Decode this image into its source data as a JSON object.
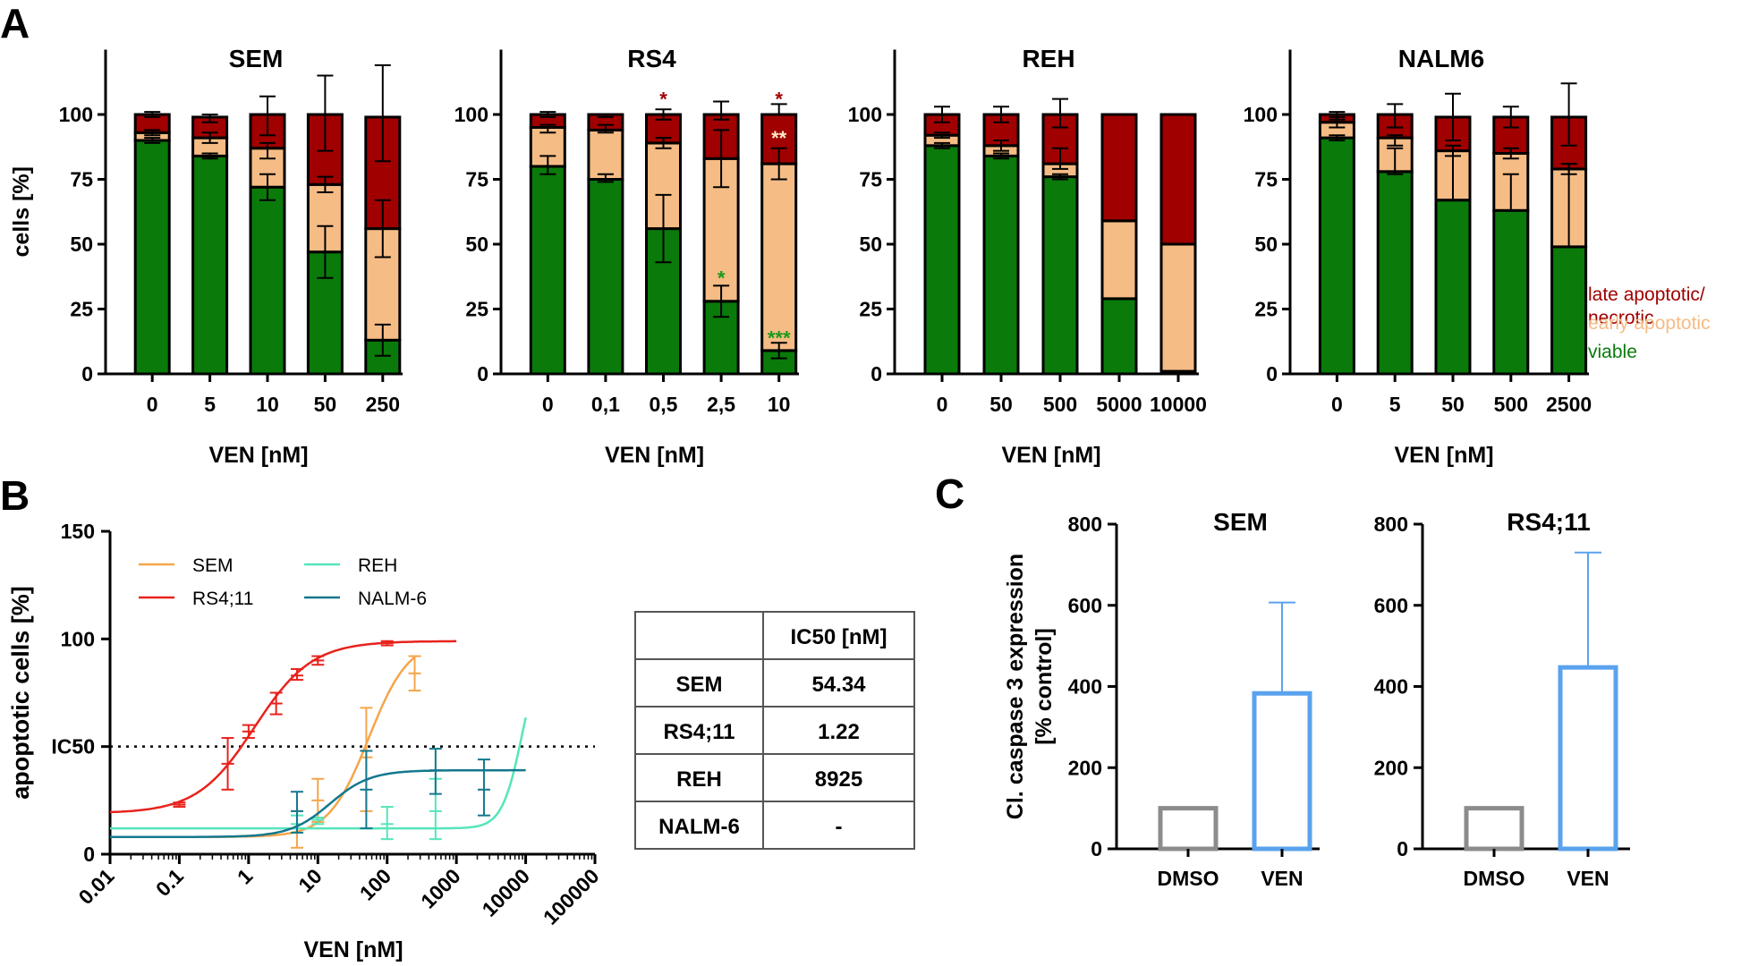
{
  "panels": {
    "a": "A",
    "b": "B",
    "c": "C"
  },
  "colors": {
    "viable": "#0a7a0a",
    "early": "#f5bc85",
    "late": "#a00000",
    "SEM": "#f5a54a",
    "RS4;11": "#e8231d",
    "REH": "#55e5bb",
    "NALM-6": "#13788e",
    "DMSO": "#8c8c8c",
    "VEN": "#5aa2ee"
  },
  "chart_data": [
    {
      "type": "bar",
      "stacked": true,
      "title": "SEM",
      "xlabel": "VEN [nM]",
      "ylabel": "cells [%]",
      "ylim": [
        0,
        125
      ],
      "yticks": [
        "0",
        "25",
        "50",
        "75",
        "100"
      ],
      "categories": [
        "0",
        "5",
        "10",
        "50",
        "250"
      ],
      "series": [
        {
          "key": "viable",
          "values": [
            90,
            84,
            72,
            47,
            13
          ]
        },
        {
          "key": "early",
          "values": [
            3,
            7,
            15,
            26,
            43
          ]
        },
        {
          "key": "late",
          "values": [
            7,
            8,
            13,
            27,
            43
          ]
        }
      ],
      "err": {
        "viable": [
          [
            89,
            91
          ],
          [
            83,
            85
          ],
          [
            67,
            77
          ],
          [
            37,
            57
          ],
          [
            7,
            19
          ]
        ],
        "early": [
          [
            92,
            94
          ],
          [
            89,
            93
          ],
          [
            83,
            89
          ],
          [
            70,
            76
          ],
          [
            45,
            67
          ]
        ],
        "late": [
          [
            99,
            101
          ],
          [
            97,
            100
          ],
          [
            92,
            107
          ],
          [
            86,
            115
          ],
          [
            82,
            119
          ]
        ]
      },
      "stars": []
    },
    {
      "type": "bar",
      "stacked": true,
      "title": "RS4",
      "xlabel": "VEN [nM]",
      "ylabel": "",
      "ylim": [
        0,
        125
      ],
      "yticks": [
        "0",
        "25",
        "50",
        "75",
        "100"
      ],
      "categories": [
        "0",
        "0,1",
        "0,5",
        "2,5",
        "10"
      ],
      "series": [
        {
          "key": "viable",
          "values": [
            80,
            75,
            56,
            28,
            9
          ]
        },
        {
          "key": "early",
          "values": [
            15,
            19,
            33,
            55,
            72
          ]
        },
        {
          "key": "late",
          "values": [
            5,
            6,
            11,
            17,
            19
          ]
        }
      ],
      "err": {
        "viable": [
          [
            77,
            84
          ],
          [
            74,
            77
          ],
          [
            43,
            69
          ],
          [
            22,
            34
          ],
          [
            6,
            12
          ]
        ],
        "early": [
          [
            93,
            96
          ],
          [
            93,
            96
          ],
          [
            87,
            91
          ],
          [
            72,
            94
          ],
          [
            75,
            87
          ]
        ],
        "late": [
          [
            99,
            101
          ],
          [
            99,
            100
          ],
          [
            98,
            102
          ],
          [
            98,
            105
          ],
          [
            100,
            104
          ]
        ]
      },
      "stars": [
        {
          "i": 2,
          "y": 106,
          "text": "*",
          "key": "late"
        },
        {
          "i": 3,
          "y": 37,
          "text": "*",
          "key": "viable"
        },
        {
          "i": 4,
          "y": 106,
          "text": "*",
          "key": "late"
        },
        {
          "i": 4,
          "y": 91,
          "text": "**",
          "key": "early"
        },
        {
          "i": 4,
          "y": 14,
          "text": "***",
          "key": "viable"
        }
      ]
    },
    {
      "type": "bar",
      "stacked": true,
      "title": "REH",
      "xlabel": "VEN [nM]",
      "ylabel": "",
      "ylim": [
        0,
        125
      ],
      "yticks": [
        "0",
        "25",
        "50",
        "75",
        "100"
      ],
      "categories": [
        "0",
        "50",
        "500",
        "5000",
        "10000"
      ],
      "series": [
        {
          "key": "viable",
          "values": [
            88,
            84,
            76,
            29,
            1
          ]
        },
        {
          "key": "early",
          "values": [
            4,
            4,
            5,
            30,
            49
          ]
        },
        {
          "key": "late",
          "values": [
            8,
            12,
            19,
            41,
            50
          ]
        }
      ],
      "err": {
        "viable": [
          [
            87,
            89
          ],
          [
            83,
            85
          ],
          [
            75,
            77
          ],
          null,
          null
        ],
        "early": [
          [
            91,
            93
          ],
          [
            86,
            90
          ],
          [
            79,
            87
          ],
          null,
          null
        ],
        "late": [
          [
            97,
            103
          ],
          [
            97,
            103
          ],
          [
            95,
            106
          ],
          null,
          null
        ]
      },
      "stars": []
    },
    {
      "type": "bar",
      "stacked": true,
      "title": "NALM6",
      "xlabel": "VEN [nM]",
      "ylabel": "",
      "ylim": [
        0,
        125
      ],
      "yticks": [
        "0",
        "25",
        "50",
        "75",
        "100"
      ],
      "categories": [
        "0",
        "5",
        "50",
        "500",
        "2500"
      ],
      "series": [
        {
          "key": "viable",
          "values": [
            91,
            78,
            67,
            63,
            49
          ]
        },
        {
          "key": "early",
          "values": [
            6,
            13,
            19,
            22,
            30
          ]
        },
        {
          "key": "late",
          "values": [
            3,
            9,
            13,
            14,
            20
          ]
        }
      ],
      "err": {
        "viable": [
          [
            90,
            92
          ],
          [
            77,
            87
          ],
          [
            67,
            86
          ],
          [
            63,
            77
          ],
          [
            49,
            81
          ]
        ],
        "early": [
          [
            95,
            99
          ],
          [
            88,
            92
          ],
          [
            84,
            88
          ],
          [
            83,
            87
          ],
          [
            77,
            81
          ]
        ],
        "late": [
          [
            98,
            101
          ],
          [
            95,
            104
          ],
          [
            90,
            108
          ],
          [
            95,
            103
          ],
          [
            88,
            112
          ]
        ]
      },
      "stars": []
    },
    {
      "type": "line",
      "xscale": "log",
      "xlabel": "VEN [nM]",
      "ylabel": "apoptotic cells [%]",
      "xlim": [
        0.01,
        100000
      ],
      "ylim": [
        0,
        150
      ],
      "xticks": [
        "0.01",
        "0.1",
        "1",
        "10",
        "100",
        "1000",
        "10000",
        "100000"
      ],
      "yticks": [
        "0",
        "50",
        "100",
        "150"
      ],
      "ref_label": "IC50",
      "ref_y": 50,
      "series": [
        {
          "name": "SEM",
          "curve": {
            "bottom": 8,
            "top": 100,
            "ic50": 54.34,
            "hill": 1.5,
            "xmax": 250
          },
          "points": [
            {
              "x": 5,
              "y": 12,
              "lo": 3,
              "hi": 20
            },
            {
              "x": 10,
              "y": 25,
              "lo": 15,
              "hi": 35
            },
            {
              "x": 50,
              "y": 45,
              "lo": 20,
              "hi": 68
            },
            {
              "x": 250,
              "y": 84,
              "lo": 76,
              "hi": 92
            }
          ]
        },
        {
          "name": "RS4;11",
          "curve": {
            "bottom": 19,
            "top": 99,
            "ic50": 1.22,
            "hill": 1.05,
            "xmax": 1000
          },
          "points": [
            {
              "x": 0.1,
              "y": 23,
              "lo": 22,
              "hi": 24
            },
            {
              "x": 0.5,
              "y": 42,
              "lo": 30,
              "hi": 54
            },
            {
              "x": 1,
              "y": 57,
              "lo": 54,
              "hi": 60
            },
            {
              "x": 2.5,
              "y": 70,
              "lo": 65,
              "hi": 75
            },
            {
              "x": 5,
              "y": 83,
              "lo": 81,
              "hi": 86
            },
            {
              "x": 10,
              "y": 90,
              "lo": 88,
              "hi": 92
            },
            {
              "x": 100,
              "y": 98,
              "lo": 97,
              "hi": 99
            }
          ]
        },
        {
          "name": "REH",
          "curve": {
            "bottom": 12,
            "top": 100,
            "ic50": 8925,
            "hill": 3,
            "xmax": 10000
          },
          "points": [
            {
              "x": 5,
              "y": 14,
              "lo": 10,
              "hi": 18
            },
            {
              "x": 10,
              "y": 16,
              "lo": 14,
              "hi": 17
            },
            {
              "x": 100,
              "y": 14,
              "lo": 7,
              "hi": 22
            },
            {
              "x": 500,
              "y": 20,
              "lo": 7,
              "hi": 35
            }
          ]
        },
        {
          "name": "NALM-6",
          "curve": {
            "bottom": 8,
            "top": 39,
            "ic50": 15,
            "hill": 1.5,
            "xmax": 10000
          },
          "points": [
            {
              "x": 5,
              "y": 20,
              "lo": 10,
              "hi": 29
            },
            {
              "x": 50,
              "y": 30,
              "lo": 12,
              "hi": 48
            },
            {
              "x": 500,
              "y": 39,
              "lo": 28,
              "hi": 49
            },
            {
              "x": 2500,
              "y": 30,
              "lo": 18,
              "hi": 44
            }
          ]
        }
      ]
    },
    {
      "type": "table",
      "columns": [
        "",
        "IC50 [nM]"
      ],
      "rows": [
        [
          "SEM",
          "54.34"
        ],
        [
          "RS4;11",
          "1.22"
        ],
        [
          "REH",
          "8925"
        ],
        [
          "NALM-6",
          "-"
        ]
      ]
    },
    {
      "type": "bar",
      "title": "SEM",
      "ylabel": "Cl. caspase 3 expression [% control]",
      "ylabel_lines": [
        "Cl. caspase 3 expression",
        "[% control]"
      ],
      "ylim": [
        0,
        800
      ],
      "yticks": [
        "0",
        "200",
        "400",
        "600",
        "800"
      ],
      "categories": [
        "DMSO",
        "VEN"
      ],
      "values": [
        100,
        383
      ],
      "err_hi": [
        null,
        607
      ]
    },
    {
      "type": "bar",
      "title": "RS4;11",
      "ylabel": "",
      "ylim": [
        0,
        800
      ],
      "yticks": [
        "0",
        "200",
        "400",
        "600",
        "800"
      ],
      "categories": [
        "DMSO",
        "VEN"
      ],
      "values": [
        100,
        447
      ],
      "err_hi": [
        null,
        730
      ]
    }
  ],
  "legend_a": [
    "late apoptotic/",
    "necrotic",
    "early apoptotic",
    "viable"
  ]
}
